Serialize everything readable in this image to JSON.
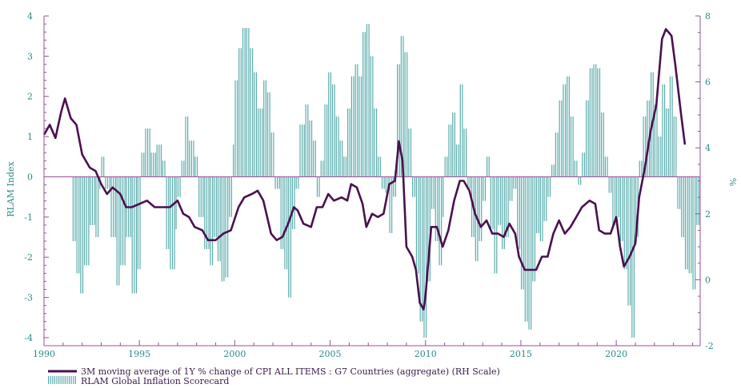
{
  "chart_data": {
    "type": "bar+line",
    "title": "",
    "xlabel": "",
    "ylabel_left": "RLAM Index",
    "ylabel_right": "%",
    "xlim": [
      1990,
      2024.4
    ],
    "ylim_left": [
      -4.2,
      4
    ],
    "ylim_right": [
      -2,
      8
    ],
    "x_ticks": [
      1990,
      1995,
      2000,
      2005,
      2010,
      2015,
      2020
    ],
    "y_ticks_left": [
      -4,
      -3,
      -2,
      -1,
      0,
      1,
      2,
      3,
      4
    ],
    "y_ticks_right": [
      -2,
      0,
      2,
      4,
      6,
      8
    ],
    "colors": {
      "bars": "#5aacac",
      "line": "#4a1050",
      "axis": "#9b4f9b",
      "ticks": "#2c8a8a"
    },
    "legend": {
      "placement": "bottom-left",
      "line_label": "3M moving average of 1Y % change of CPI ALL ITEMS : G7 Countries (aggregate) (RH Scale)",
      "bar_label": "RLAM Global Inflation Scorecard"
    },
    "bar_series": {
      "name": "RLAM Global Inflation Scorecard",
      "points": [
        [
          1991.5,
          -1.6
        ],
        [
          1991.7,
          -2.4
        ],
        [
          1991.9,
          -2.9
        ],
        [
          1992.1,
          -2.2
        ],
        [
          1992.4,
          -1.2
        ],
        [
          1992.7,
          -1.5
        ],
        [
          1992.9,
          -0.3
        ],
        [
          1993.0,
          0.5
        ],
        [
          1993.2,
          -0.3
        ],
        [
          1993.5,
          -1.5
        ],
        [
          1993.8,
          -2.7
        ],
        [
          1994.0,
          -2.2
        ],
        [
          1994.3,
          -1.5
        ],
        [
          1994.6,
          -2.9
        ],
        [
          1994.9,
          -2.3
        ],
        [
          1995.1,
          0.6
        ],
        [
          1995.3,
          1.2
        ],
        [
          1995.6,
          0.6
        ],
        [
          1995.9,
          0.8
        ],
        [
          1996.2,
          0.4
        ],
        [
          1996.4,
          -1.8
        ],
        [
          1996.6,
          -2.3
        ],
        [
          1996.9,
          -1.3
        ],
        [
          1997.0,
          -0.5
        ],
        [
          1997.2,
          0.4
        ],
        [
          1997.4,
          1.5
        ],
        [
          1997.6,
          0.9
        ],
        [
          1997.9,
          0.5
        ],
        [
          1998.1,
          -1.0
        ],
        [
          1998.4,
          -1.8
        ],
        [
          1998.7,
          -2.2
        ],
        [
          1998.9,
          -1.5
        ],
        [
          1999.1,
          -2.1
        ],
        [
          1999.3,
          -2.6
        ],
        [
          1999.5,
          -2.5
        ],
        [
          1999.7,
          -1.0
        ],
        [
          1999.9,
          0.8
        ],
        [
          2000.0,
          2.4
        ],
        [
          2000.2,
          3.2
        ],
        [
          2000.4,
          3.7
        ],
        [
          2000.6,
          3.7
        ],
        [
          2000.8,
          3.2
        ],
        [
          2001.0,
          2.6
        ],
        [
          2001.2,
          1.7
        ],
        [
          2001.5,
          2.4
        ],
        [
          2001.7,
          2.1
        ],
        [
          2001.9,
          1.1
        ],
        [
          2002.1,
          -0.3
        ],
        [
          2002.4,
          -1.8
        ],
        [
          2002.6,
          -2.3
        ],
        [
          2002.8,
          -3.0
        ],
        [
          2003.0,
          -1.3
        ],
        [
          2003.2,
          -0.3
        ],
        [
          2003.4,
          1.3
        ],
        [
          2003.7,
          1.8
        ],
        [
          2003.9,
          1.4
        ],
        [
          2004.1,
          0.9
        ],
        [
          2004.3,
          -0.5
        ],
        [
          2004.5,
          0.4
        ],
        [
          2004.7,
          1.8
        ],
        [
          2004.9,
          2.6
        ],
        [
          2005.1,
          2.3
        ],
        [
          2005.3,
          1.5
        ],
        [
          2005.5,
          0.9
        ],
        [
          2005.7,
          0.5
        ],
        [
          2005.9,
          1.7
        ],
        [
          2006.1,
          2.5
        ],
        [
          2006.3,
          2.8
        ],
        [
          2006.5,
          2.5
        ],
        [
          2006.7,
          3.6
        ],
        [
          2006.9,
          3.8
        ],
        [
          2007.1,
          3.0
        ],
        [
          2007.3,
          1.7
        ],
        [
          2007.5,
          0.5
        ],
        [
          2007.7,
          -0.3
        ],
        [
          2007.9,
          -0.4
        ],
        [
          2008.1,
          -1.4
        ],
        [
          2008.3,
          -0.5
        ],
        [
          2008.5,
          2.8
        ],
        [
          2008.7,
          3.5
        ],
        [
          2008.9,
          3.1
        ],
        [
          2009.1,
          1.2
        ],
        [
          2009.3,
          -0.5
        ],
        [
          2009.5,
          -2.4
        ],
        [
          2009.7,
          -3.6
        ],
        [
          2009.9,
          -4.0
        ],
        [
          2010.1,
          -2.6
        ],
        [
          2010.3,
          -0.8
        ],
        [
          2010.5,
          -1.6
        ],
        [
          2010.7,
          -2.2
        ],
        [
          2010.9,
          -1.0
        ],
        [
          2011.0,
          0.5
        ],
        [
          2011.2,
          1.3
        ],
        [
          2011.4,
          1.6
        ],
        [
          2011.6,
          0.8
        ],
        [
          2011.8,
          2.3
        ],
        [
          2012.0,
          1.2
        ],
        [
          2012.2,
          -0.3
        ],
        [
          2012.4,
          -1.5
        ],
        [
          2012.6,
          -2.1
        ],
        [
          2012.8,
          -1.6
        ],
        [
          2013.0,
          -0.6
        ],
        [
          2013.2,
          0.5
        ],
        [
          2013.4,
          -1.3
        ],
        [
          2013.6,
          -2.4
        ],
        [
          2013.8,
          -1.2
        ],
        [
          2014.0,
          -1.8
        ],
        [
          2014.2,
          -1.5
        ],
        [
          2014.4,
          -0.6
        ],
        [
          2014.6,
          -0.3
        ],
        [
          2014.8,
          -1.8
        ],
        [
          2015.0,
          -2.8
        ],
        [
          2015.2,
          -3.6
        ],
        [
          2015.4,
          -3.8
        ],
        [
          2015.6,
          -2.6
        ],
        [
          2015.8,
          -1.4
        ],
        [
          2016.0,
          -1.6
        ],
        [
          2016.2,
          -1.1
        ],
        [
          2016.4,
          -0.5
        ],
        [
          2016.6,
          0.3
        ],
        [
          2016.8,
          1.1
        ],
        [
          2017.0,
          1.9
        ],
        [
          2017.2,
          2.3
        ],
        [
          2017.4,
          2.5
        ],
        [
          2017.6,
          1.5
        ],
        [
          2017.8,
          0.4
        ],
        [
          2018.0,
          -0.2
        ],
        [
          2018.2,
          0.6
        ],
        [
          2018.4,
          1.9
        ],
        [
          2018.6,
          2.7
        ],
        [
          2018.8,
          2.8
        ],
        [
          2019.0,
          2.7
        ],
        [
          2019.2,
          1.6
        ],
        [
          2019.4,
          0.5
        ],
        [
          2019.6,
          -0.4
        ],
        [
          2019.8,
          -1.2
        ],
        [
          2020.0,
          -1.0
        ],
        [
          2020.2,
          -1.6
        ],
        [
          2020.4,
          -2.3
        ],
        [
          2020.6,
          -3.2
        ],
        [
          2020.8,
          -4.0
        ],
        [
          2021.0,
          -1.5
        ],
        [
          2021.2,
          0.4
        ],
        [
          2021.4,
          1.5
        ],
        [
          2021.6,
          1.9
        ],
        [
          2021.8,
          2.6
        ],
        [
          2022.0,
          1.8
        ],
        [
          2022.2,
          1.0
        ],
        [
          2022.4,
          2.3
        ],
        [
          2022.6,
          1.7
        ],
        [
          2022.8,
          2.5
        ],
        [
          2023.0,
          1.5
        ],
        [
          2023.2,
          -0.8
        ],
        [
          2023.4,
          -1.5
        ],
        [
          2023.6,
          -2.3
        ],
        [
          2023.8,
          -2.4
        ],
        [
          2024.0,
          -2.8
        ],
        [
          2024.2,
          -1.2
        ]
      ]
    },
    "line_series": {
      "name": "3M moving average of 1Y % change of CPI ALL ITEMS : G7 Countries (aggregate) (RH Scale)",
      "points": [
        [
          1990.0,
          4.4
        ],
        [
          1990.3,
          4.7
        ],
        [
          1990.6,
          4.3
        ],
        [
          1990.9,
          5.1
        ],
        [
          1991.1,
          5.5
        ],
        [
          1991.4,
          4.9
        ],
        [
          1991.7,
          4.7
        ],
        [
          1992.0,
          3.8
        ],
        [
          1992.4,
          3.4
        ],
        [
          1992.7,
          3.3
        ],
        [
          1993.0,
          2.9
        ],
        [
          1993.3,
          2.6
        ],
        [
          1993.6,
          2.8
        ],
        [
          1994.0,
          2.6
        ],
        [
          1994.3,
          2.2
        ],
        [
          1994.6,
          2.2
        ],
        [
          1995.0,
          2.3
        ],
        [
          1995.4,
          2.4
        ],
        [
          1995.8,
          2.2
        ],
        [
          1996.2,
          2.2
        ],
        [
          1996.6,
          2.2
        ],
        [
          1997.0,
          2.4
        ],
        [
          1997.3,
          2.0
        ],
        [
          1997.6,
          1.9
        ],
        [
          1997.9,
          1.6
        ],
        [
          1998.3,
          1.5
        ],
        [
          1998.6,
          1.2
        ],
        [
          1999.0,
          1.2
        ],
        [
          1999.4,
          1.4
        ],
        [
          1999.8,
          1.5
        ],
        [
          2000.2,
          2.2
        ],
        [
          2000.5,
          2.5
        ],
        [
          2000.9,
          2.6
        ],
        [
          2001.2,
          2.7
        ],
        [
          2001.5,
          2.4
        ],
        [
          2001.9,
          1.4
        ],
        [
          2002.2,
          1.2
        ],
        [
          2002.5,
          1.3
        ],
        [
          2002.8,
          1.7
        ],
        [
          2003.1,
          2.2
        ],
        [
          2003.3,
          2.1
        ],
        [
          2003.6,
          1.7
        ],
        [
          2004.0,
          1.6
        ],
        [
          2004.3,
          2.2
        ],
        [
          2004.6,
          2.2
        ],
        [
          2004.9,
          2.6
        ],
        [
          2005.2,
          2.4
        ],
        [
          2005.6,
          2.5
        ],
        [
          2005.9,
          2.4
        ],
        [
          2006.1,
          2.9
        ],
        [
          2006.4,
          2.8
        ],
        [
          2006.7,
          2.3
        ],
        [
          2006.9,
          1.6
        ],
        [
          2007.2,
          2.0
        ],
        [
          2007.5,
          1.9
        ],
        [
          2007.8,
          2.0
        ],
        [
          2008.1,
          2.9
        ],
        [
          2008.4,
          3.0
        ],
        [
          2008.6,
          4.2
        ],
        [
          2008.8,
          3.6
        ],
        [
          2009.0,
          1.0
        ],
        [
          2009.3,
          0.7
        ],
        [
          2009.5,
          0.3
        ],
        [
          2009.7,
          -0.7
        ],
        [
          2009.9,
          -0.9
        ],
        [
          2010.0,
          -0.5
        ],
        [
          2010.3,
          1.6
        ],
        [
          2010.6,
          1.6
        ],
        [
          2010.9,
          1.0
        ],
        [
          2011.2,
          1.5
        ],
        [
          2011.5,
          2.4
        ],
        [
          2011.8,
          3.0
        ],
        [
          2012.0,
          3.0
        ],
        [
          2012.3,
          2.7
        ],
        [
          2012.6,
          2.0
        ],
        [
          2012.9,
          1.6
        ],
        [
          2013.2,
          1.8
        ],
        [
          2013.5,
          1.4
        ],
        [
          2013.8,
          1.4
        ],
        [
          2014.1,
          1.3
        ],
        [
          2014.4,
          1.7
        ],
        [
          2014.7,
          1.4
        ],
        [
          2014.9,
          0.7
        ],
        [
          2015.2,
          0.3
        ],
        [
          2015.5,
          0.3
        ],
        [
          2015.8,
          0.3
        ],
        [
          2016.1,
          0.7
        ],
        [
          2016.4,
          0.7
        ],
        [
          2016.7,
          1.4
        ],
        [
          2017.0,
          1.8
        ],
        [
          2017.3,
          1.4
        ],
        [
          2017.6,
          1.6
        ],
        [
          2017.9,
          1.9
        ],
        [
          2018.2,
          2.2
        ],
        [
          2018.6,
          2.4
        ],
        [
          2018.9,
          2.3
        ],
        [
          2019.1,
          1.5
        ],
        [
          2019.4,
          1.4
        ],
        [
          2019.7,
          1.4
        ],
        [
          2020.0,
          1.9
        ],
        [
          2020.2,
          1.0
        ],
        [
          2020.4,
          0.4
        ],
        [
          2020.7,
          0.7
        ],
        [
          2021.0,
          1.1
        ],
        [
          2021.2,
          2.5
        ],
        [
          2021.5,
          3.4
        ],
        [
          2021.8,
          4.5
        ],
        [
          2022.1,
          5.3
        ],
        [
          2022.4,
          7.3
        ],
        [
          2022.6,
          7.6
        ],
        [
          2022.9,
          7.4
        ],
        [
          2023.1,
          6.5
        ],
        [
          2023.4,
          5.0
        ],
        [
          2023.6,
          4.1
        ]
      ]
    }
  }
}
